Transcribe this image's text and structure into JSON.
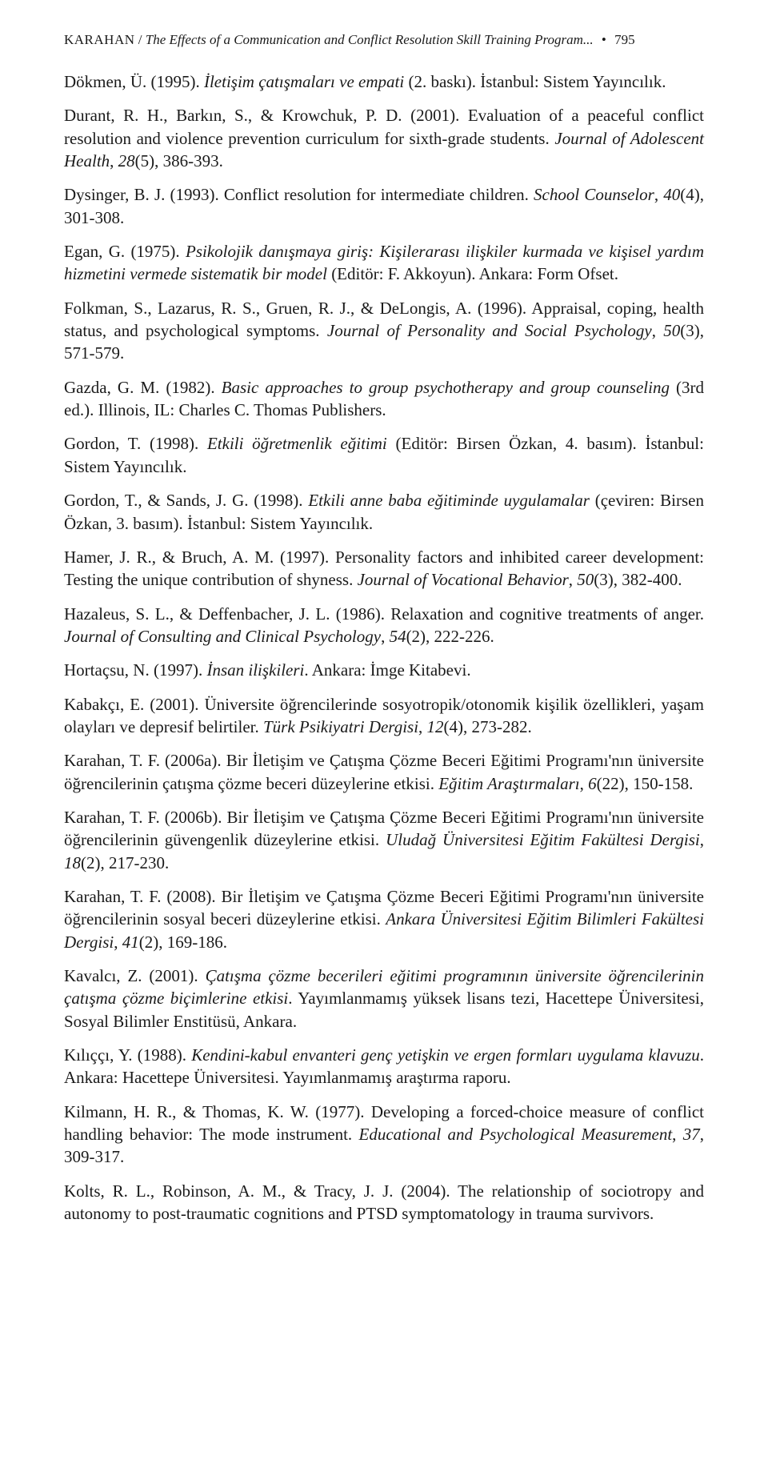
{
  "header": {
    "author": "KARAHAN",
    "slash": " / ",
    "title_fragment": "The Effects of a Communication and Conflict Resolution Skill Training Program...",
    "bullet": " • ",
    "page_number": "795"
  },
  "refs": [
    {
      "plain1": "Dökmen, Ü. (1995). ",
      "italic1": "İletişim çatışmaları ve empati",
      "plain2": " (2. baskı). İstanbul: Sistem Yayıncılık."
    },
    {
      "plain1": "Durant, R. H., Barkın, S., & Krowchuk, P. D. (2001). Evaluation of a peaceful conflict resolution and violence prevention curriculum for sixth-grade students. ",
      "italic1": "Journal of Adolescent Health",
      "plain2": ", ",
      "italic2": "28",
      "plain3": "(5), 386-393."
    },
    {
      "plain1": "Dysinger, B. J. (1993). Conflict resolution for intermediate children. ",
      "italic1": "School Counselor",
      "plain2": ", ",
      "italic2": "40",
      "plain3": "(4), 301-308."
    },
    {
      "plain1": "Egan, G. (1975). ",
      "italic1": "Psikolojik danışmaya giriş: Kişilerarası ilişkiler kurmada ve kişisel yardım hizmetini vermede sistematik bir model",
      "plain2": " (Editör: F. Akkoyun). Ankara: Form Ofset."
    },
    {
      "plain1": "Folkman, S., Lazarus, R. S., Gruen, R. J., & DeLongis, A. (1996). Appraisal, coping, health status, and psychological symptoms. ",
      "italic1": "Journal of Personality and Social Psychology",
      "plain2": ", ",
      "italic2": "50",
      "plain3": "(3), 571-579."
    },
    {
      "plain1": "Gazda, G. M. (1982). ",
      "italic1": "Basic approaches to group psychotherapy and group counseling",
      "plain2": " (3rd ed.). Illinois, IL: Charles C. Thomas Publishers."
    },
    {
      "plain1": "Gordon, T. (1998). ",
      "italic1": "Etkili öğretmenlik eğitimi",
      "plain2": " (Editör: Birsen Özkan, 4. basım). İstanbul: Sistem Yayıncılık."
    },
    {
      "plain1": "Gordon, T., & Sands, J. G. (1998). ",
      "italic1": "Etkili anne baba eğitiminde uygulamalar",
      "plain2": " (çeviren: Birsen Özkan, 3. basım). İstanbul: Sistem Yayıncılık."
    },
    {
      "plain1": "Hamer, J. R., & Bruch, A. M. (1997). Personality factors and inhibited career development: Testing the unique contribution of shyness. ",
      "italic1": "Journal of Vocational Behavior",
      "plain2": ", ",
      "italic2": "50",
      "plain3": "(3), 382-400."
    },
    {
      "plain1": "Hazaleus, S. L., & Deffenbacher, J. L. (1986). Relaxation and cognitive treatments of anger. ",
      "italic1": "Journal of Consulting and Clinical Psychology",
      "plain2": ", ",
      "italic2": "54",
      "plain3": "(2), 222-226."
    },
    {
      "plain1": "Hortaçsu, N. (1997). ",
      "italic1": "İnsan ilişkileri",
      "plain2": ". Ankara: İmge Kitabevi."
    },
    {
      "plain1": "Kabakçı, E. (2001). Üniversite öğrencilerinde sosyotropik/otonomik kişilik özellikleri, yaşam olayları ve depresif belirtiler. ",
      "italic1": "Türk Psikiyatri Dergisi",
      "plain2": ", ",
      "italic2": "12",
      "plain3": "(4), 273-282."
    },
    {
      "plain1": "Karahan, T. F. (2006a). Bir İletişim ve Çatışma Çözme Beceri Eğitimi Programı'nın üniversite öğrencilerinin çatışma çözme beceri düzeylerine etkisi. ",
      "italic1": "Eğitim Araştırmaları",
      "plain2": ", ",
      "italic2": "6",
      "plain3": "(22), 150-158."
    },
    {
      "plain1": "Karahan, T. F. (2006b). Bir İletişim ve Çatışma Çözme Beceri Eğitimi Programı'nın üniversite öğrencilerinin güvengenlik düzeylerine etkisi. ",
      "italic1": "Uludağ Üniversitesi Eğitim Fakültesi Dergisi",
      "plain2": ", ",
      "italic2": "18",
      "plain3": "(2), 217-230."
    },
    {
      "plain1": "Karahan, T. F. (2008). Bir İletişim ve Çatışma Çözme Beceri Eğitimi Programı'nın üniversite öğrencilerinin sosyal beceri düzeylerine etkisi. ",
      "italic1": "Ankara Üniversitesi Eğitim Bilimleri Fakültesi Dergisi",
      "plain2": ", ",
      "italic2": "41",
      "plain3": "(2), 169-186."
    },
    {
      "plain1": "Kavalcı, Z. (2001). ",
      "italic1": "Çatışma çözme becerileri eğitimi programının üniversite öğrencilerinin çatışma çözme biçimlerine etkisi",
      "plain2": ". Yayımlanmamış yüksek lisans tezi, Hacettepe Üniversitesi, Sosyal Bilimler Enstitüsü, Ankara."
    },
    {
      "plain1": "Kılıççı, Y. (1988). ",
      "italic1": "Kendini-kabul envanteri genç yetişkin ve ergen formları uygulama klavuzu",
      "plain2": ". Ankara: Hacettepe Üniversitesi. Yayımlanmamış araştırma raporu."
    },
    {
      "plain1": "Kilmann, H. R., & Thomas, K. W. (1977). Developing a forced-choice measure of conflict handling behavior: The mode instrument. ",
      "italic1": "Educational and Psychological Measurement",
      "plain2": ", ",
      "italic2": "37",
      "plain3": ", 309-317."
    },
    {
      "plain1": "Kolts, R. L., Robinson, A. M., & Tracy, J. J. (2004). The relationship of sociotropy and autonomy to post-traumatic cognitions and PTSD symptomatology in trauma survivors."
    }
  ]
}
